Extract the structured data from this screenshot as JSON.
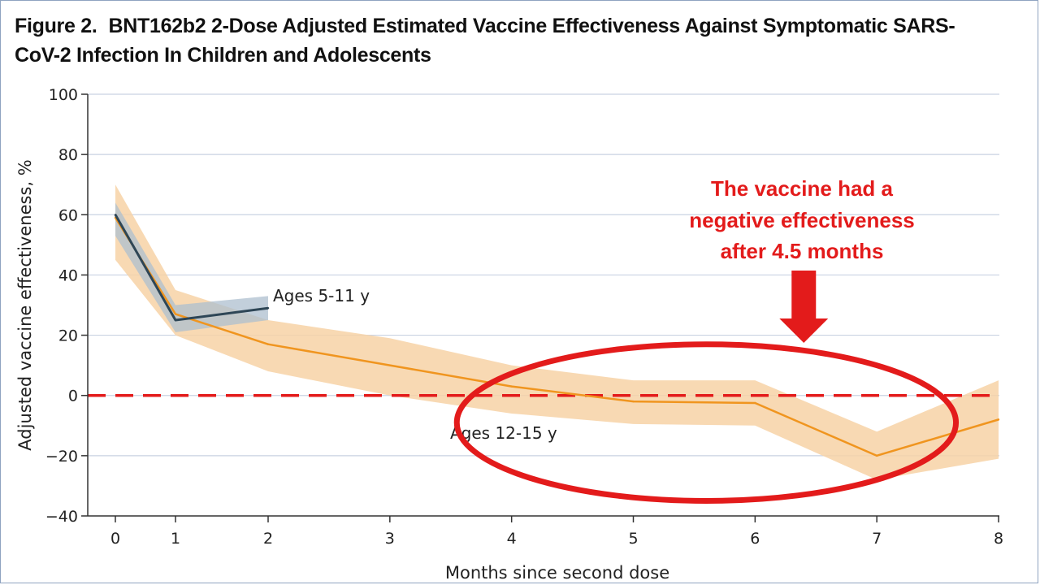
{
  "figure": {
    "label": "Figure 2.",
    "title_line1": "BNT162b2 2-Dose Adjusted Estimated Vaccine Effectiveness Against Symptomatic SARS-",
    "title_line2": "CoV-2 Infection In Children and Adolescents"
  },
  "chart_data": {
    "type": "line",
    "xlabel": "Months since second dose",
    "ylabel": "Adjusted vaccine effectiveness, %",
    "xlim": [
      0,
      8
    ],
    "ylim": [
      -40,
      100
    ],
    "x_ticks": [
      0,
      1,
      2,
      3,
      4,
      5,
      6,
      7,
      8
    ],
    "y_ticks": [
      -40,
      -20,
      0,
      20,
      40,
      60,
      80,
      100
    ],
    "grid": "horizontal",
    "series": [
      {
        "name": "Ages 12-15 y",
        "color": "#f0951f",
        "band_color": "#f7d2a6",
        "x": [
          0,
          1,
          2,
          3,
          4,
          5,
          6,
          7,
          8
        ],
        "y": [
          59,
          27,
          17,
          10,
          3,
          -2,
          -2.5,
          -20,
          -8
        ],
        "ci_lower": [
          45,
          20,
          8,
          0,
          -6,
          -9.5,
          -10,
          -28,
          -21
        ],
        "ci_upper": [
          70,
          35,
          25,
          19,
          10,
          5,
          5,
          -12,
          5
        ]
      },
      {
        "name": "Ages 5-11 y",
        "color": "#2e4656",
        "band_color": "#aebfcf",
        "x": [
          0,
          1,
          2
        ],
        "y": [
          60,
          25,
          29
        ],
        "ci_lower": [
          53,
          21,
          25
        ],
        "ci_upper": [
          64,
          30,
          33
        ]
      }
    ],
    "reference_line": {
      "y": 0,
      "color": "#e31b1b",
      "style": "dashed"
    },
    "annotation": {
      "lines": [
        "The vaccine had a",
        "negative effectiveness",
        "after 4.5 months"
      ],
      "color": "#e31b1b",
      "arrow_x": 6.4,
      "ellipse_center": [
        5.6,
        -9
      ],
      "ellipse_radius_months": 2.05,
      "ellipse_radius_pct": 26
    }
  }
}
